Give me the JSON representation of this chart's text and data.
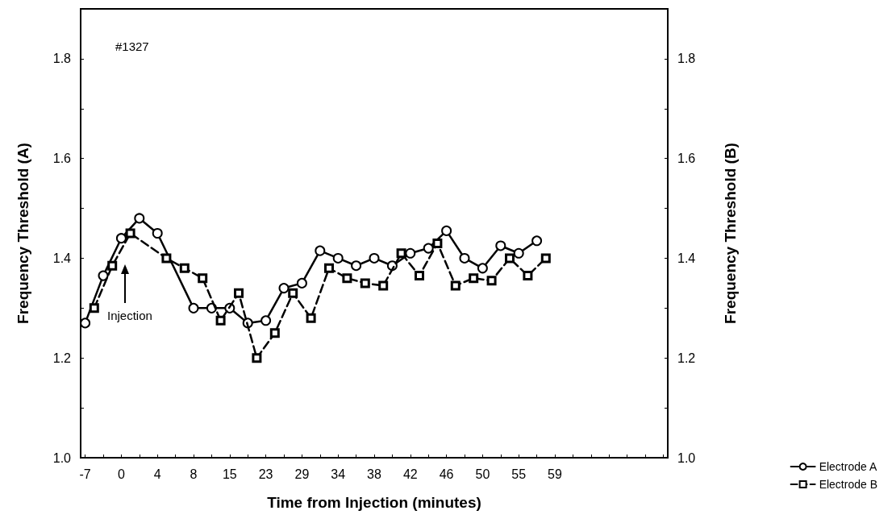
{
  "chart_data": {
    "type": "line",
    "xlabel": "Time from Injection (minutes)",
    "ylabel": "Frequency Threshold (A)",
    "y2label": "Frequency Threshold (B)",
    "categories": [
      "-7",
      null,
      null,
      null,
      "0",
      null,
      null,
      null,
      "4",
      null,
      null,
      null,
      "8",
      null,
      null,
      null,
      "15",
      null,
      null,
      null,
      "23",
      null,
      null,
      null,
      "29",
      null,
      null,
      null,
      "34",
      null,
      null,
      null,
      "38",
      null,
      null,
      null,
      "42",
      null,
      null,
      null,
      "46",
      null,
      null,
      null,
      "50",
      null,
      null,
      null,
      "55",
      null,
      null,
      null,
      "59",
      null,
      null,
      null,
      null,
      null,
      null,
      null,
      null,
      null,
      null,
      null,
      null
    ],
    "series": [
      {
        "name": "Electrode A",
        "color": "#000000",
        "marker": "circle",
        "line_style": "solid",
        "values": [
          1.27,
          null,
          1.365,
          null,
          1.44,
          null,
          1.48,
          null,
          1.45,
          null,
          null,
          null,
          1.3,
          null,
          1.3,
          null,
          1.3,
          null,
          1.27,
          null,
          1.275,
          null,
          1.34,
          null,
          1.35,
          null,
          1.415,
          null,
          1.4,
          null,
          1.385,
          null,
          1.4,
          null,
          1.385,
          null,
          1.41,
          null,
          1.42,
          null,
          1.455,
          null,
          1.4,
          null,
          1.38,
          null,
          1.425,
          null,
          1.41,
          null,
          1.435,
          null,
          null,
          null,
          null,
          null,
          null,
          null,
          null,
          null,
          null,
          null,
          null,
          null,
          null
        ]
      },
      {
        "name": "Electrode B",
        "color": "#000000",
        "marker": "square",
        "line_style": "dashed",
        "values": [
          null,
          1.3,
          null,
          1.385,
          null,
          1.45,
          null,
          null,
          null,
          1.4,
          null,
          1.38,
          null,
          1.36,
          null,
          1.275,
          null,
          1.33,
          null,
          1.2,
          null,
          1.25,
          null,
          1.33,
          null,
          1.28,
          null,
          1.38,
          null,
          1.36,
          null,
          1.35,
          null,
          1.345,
          null,
          1.41,
          null,
          1.365,
          null,
          1.43,
          null,
          1.345,
          null,
          1.36,
          null,
          1.355,
          null,
          1.4,
          null,
          1.365,
          null,
          1.4,
          null,
          null,
          null,
          null,
          null,
          null,
          null,
          null,
          null,
          null,
          null,
          null,
          null
        ]
      }
    ],
    "ylim": [
      1.0,
      1.9
    ],
    "yticks": [
      {
        "value": 1.0,
        "label": "1.0"
      },
      {
        "value": 1.1,
        "label": null
      },
      {
        "value": 1.2,
        "label": "1.2"
      },
      {
        "value": 1.3,
        "label": null
      },
      {
        "value": 1.4,
        "label": "1.4"
      },
      {
        "value": 1.5,
        "label": null
      },
      {
        "value": 1.6,
        "label": "1.6"
      },
      {
        "value": 1.7,
        "label": null
      },
      {
        "value": 1.8,
        "label": "1.8"
      }
    ],
    "y2lim": [
      1.0,
      1.9
    ],
    "y2ticks": [
      {
        "value": 1.0,
        "label": "1.0"
      },
      {
        "value": 1.1,
        "label": null
      },
      {
        "value": 1.2,
        "label": "1.2"
      },
      {
        "value": 1.3,
        "label": null
      },
      {
        "value": 1.4,
        "label": "1.4"
      },
      {
        "value": 1.5,
        "label": null
      },
      {
        "value": 1.6,
        "label": "1.6"
      },
      {
        "value": 1.7,
        "label": null
      },
      {
        "value": 1.8,
        "label": "1.8"
      }
    ],
    "annotations": [
      "#1327",
      "Injection"
    ],
    "grid": false,
    "legend": "bottom right"
  }
}
